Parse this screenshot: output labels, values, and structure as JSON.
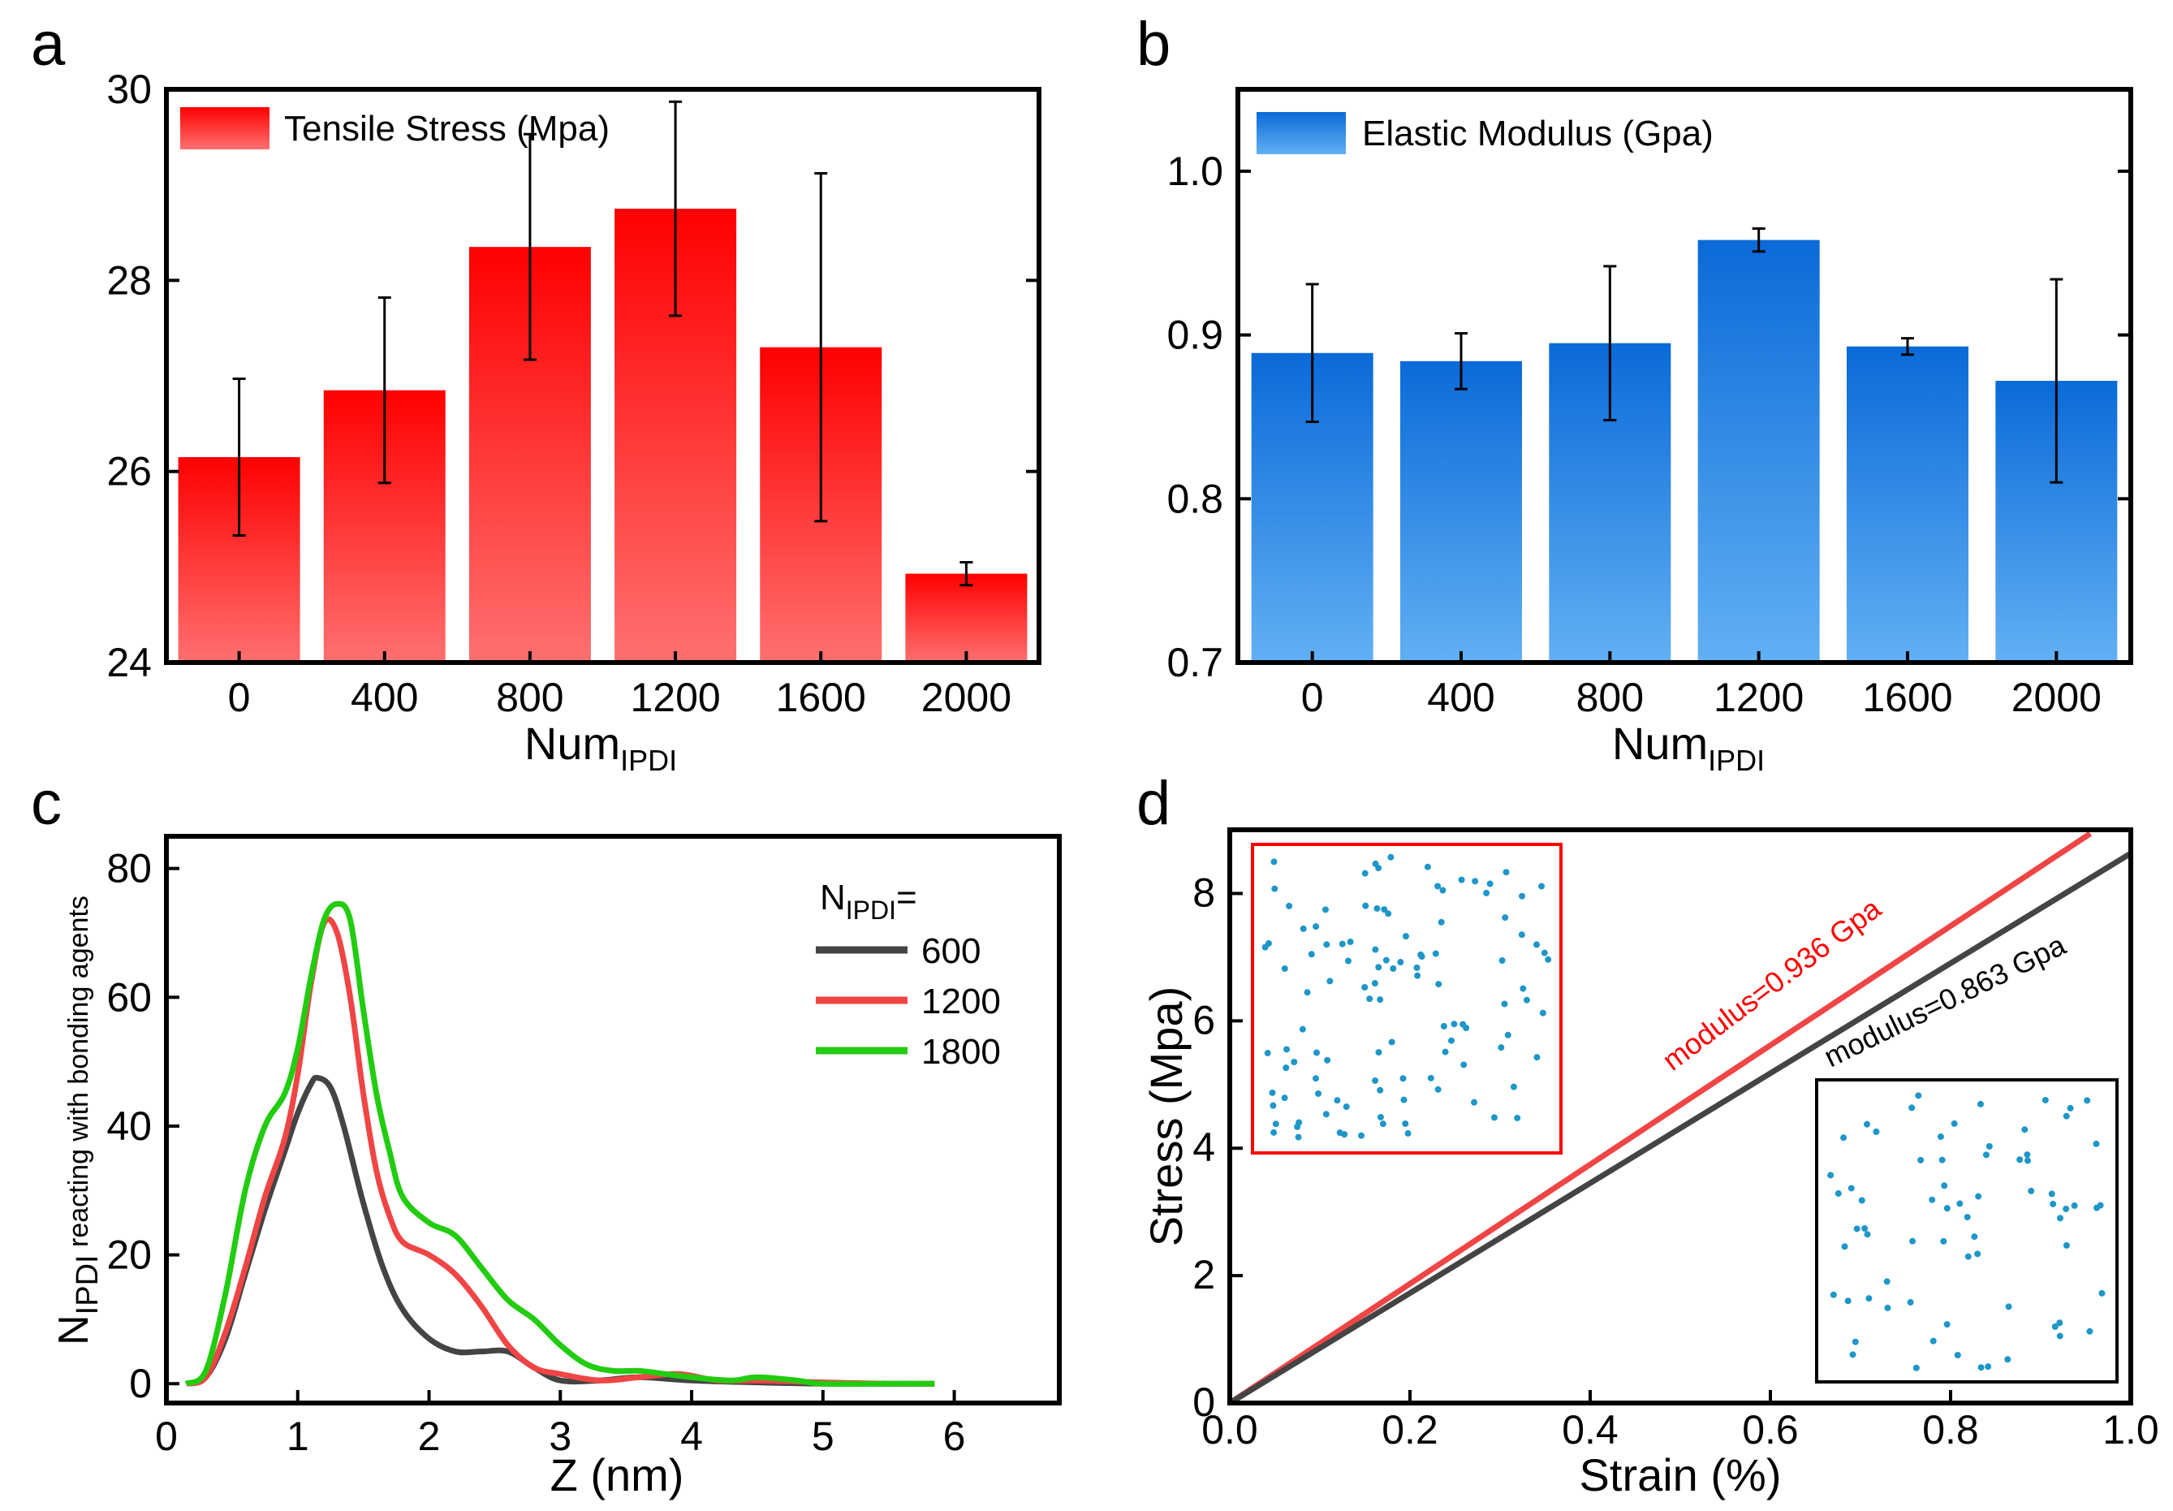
{
  "colors": {
    "red": "#ff0000",
    "red_light": "#ff6b6b",
    "blue": "#0a6edc",
    "blue_light": "#5aaaf0",
    "dark": "#444444",
    "line_red": "#f04545",
    "line_green": "#22cc11",
    "dots": "#1e96c8"
  },
  "chart_data": [
    {
      "panel": "a",
      "type": "bar",
      "categories": [
        "0",
        "400",
        "800",
        "1200",
        "1600",
        "2000"
      ],
      "values": [
        26.15,
        26.85,
        28.35,
        28.75,
        27.3,
        24.93
      ],
      "errors": [
        0.82,
        0.97,
        1.18,
        1.12,
        1.82,
        0.12
      ],
      "ylim": [
        24,
        30
      ],
      "yticks": [
        "24",
        "26",
        "28",
        "30"
      ],
      "legend": "Tensile Stress (Mpa)",
      "xlabel_main": "Num",
      "xlabel_sub": "IPDI",
      "ylabel": ""
    },
    {
      "panel": "b",
      "type": "bar",
      "categories": [
        "0",
        "400",
        "800",
        "1200",
        "1600",
        "2000"
      ],
      "values": [
        0.889,
        0.884,
        0.895,
        0.958,
        0.893,
        0.872
      ],
      "errors": [
        0.042,
        0.017,
        0.047,
        0.007,
        0.005,
        0.062
      ],
      "ylim": [
        0.7,
        1.05
      ],
      "yticks": [
        "0.7",
        "0.8",
        "0.9",
        "1.0"
      ],
      "legend": "Elastic Modulus (Gpa)",
      "xlabel_main": "Num",
      "xlabel_sub": "IPDI",
      "ylabel": ""
    },
    {
      "panel": "c",
      "type": "line",
      "xlim": [
        0,
        6.8
      ],
      "ylim": [
        -3,
        85
      ],
      "xticks": [
        "0",
        "1",
        "2",
        "3",
        "4",
        "5",
        "6"
      ],
      "yticks": [
        "0",
        "20",
        "40",
        "60",
        "80"
      ],
      "xlabel": "Z (nm)",
      "ylabel_main": "N",
      "ylabel_sub": "IPDI",
      "ylabel_rest": " reacting with bonding agents",
      "legend_title_main": "N",
      "legend_title_sub": "IPDI",
      "legend_title_suffix": "=",
      "series": [
        {
          "name": "600",
          "x": [
            0.15,
            0.3,
            0.45,
            0.6,
            0.75,
            0.9,
            1.0,
            1.1,
            1.15,
            1.25,
            1.35,
            1.5,
            1.65,
            1.8,
            2.0,
            2.2,
            2.4,
            2.6,
            2.8,
            3.0,
            3.3,
            3.6,
            4.0,
            4.5,
            5.0,
            5.5,
            5.85
          ],
          "y": [
            0,
            1,
            7,
            17,
            27,
            36,
            42,
            46.5,
            47.5,
            46,
            40,
            28,
            18,
            11.5,
            7,
            5,
            5,
            5,
            2.5,
            0.5,
            0.5,
            1,
            0.5,
            0.2,
            0,
            0,
            0
          ]
        },
        {
          "name": "1200",
          "x": [
            0.15,
            0.3,
            0.45,
            0.6,
            0.75,
            0.9,
            1.0,
            1.1,
            1.2,
            1.3,
            1.4,
            1.5,
            1.6,
            1.7,
            1.8,
            2.0,
            2.2,
            2.4,
            2.6,
            2.8,
            3.0,
            3.3,
            3.6,
            3.9,
            4.2,
            4.5,
            5.0,
            5.5,
            5.85
          ],
          "y": [
            0,
            1,
            8,
            18,
            29,
            38,
            48,
            62,
            71.5,
            70,
            60,
            45,
            33,
            26,
            22,
            20,
            17,
            12,
            6,
            2.5,
            1.5,
            0.5,
            1,
            1.5,
            0.5,
            0.5,
            0.2,
            0,
            0
          ]
        },
        {
          "name": "1800",
          "x": [
            0.15,
            0.3,
            0.45,
            0.6,
            0.75,
            0.9,
            1.0,
            1.1,
            1.2,
            1.3,
            1.4,
            1.5,
            1.6,
            1.7,
            1.8,
            2.0,
            2.2,
            2.4,
            2.6,
            2.8,
            3.0,
            3.2,
            3.4,
            3.6,
            3.8,
            4.0,
            4.3,
            4.5,
            4.8,
            5.0,
            5.5,
            5.85
          ],
          "y": [
            0,
            2,
            14,
            30,
            40,
            45,
            52,
            63,
            72,
            74.5,
            72,
            58,
            45,
            36,
            29,
            25,
            23,
            18,
            13,
            10,
            6,
            3,
            2,
            2,
            1.5,
            1,
            0.5,
            1,
            0.5,
            0,
            0,
            0
          ]
        }
      ]
    },
    {
      "panel": "d",
      "type": "line",
      "xlim": [
        0,
        1.0
      ],
      "ylim": [
        0,
        9
      ],
      "xticks": [
        "0.0",
        "0.2",
        "0.4",
        "0.6",
        "0.8",
        "1.0"
      ],
      "yticks": [
        "0",
        "2",
        "4",
        "6",
        "8"
      ],
      "xlabel": "Strain (%)",
      "ylabel": "Stress (Mpa)",
      "series": [
        {
          "name": "modulus=0.936 Gpa",
          "x": [
            0,
            0.955
          ],
          "y": [
            0,
            8.94
          ]
        },
        {
          "name": "modulus=0.863 Gpa",
          "x": [
            0,
            1.0
          ],
          "y": [
            0,
            8.63
          ]
        }
      ],
      "annotations": [
        "modulus=0.936 Gpa",
        "modulus=0.863 Gpa"
      ]
    }
  ],
  "panel_letters": [
    "a",
    "b",
    "c",
    "d"
  ]
}
